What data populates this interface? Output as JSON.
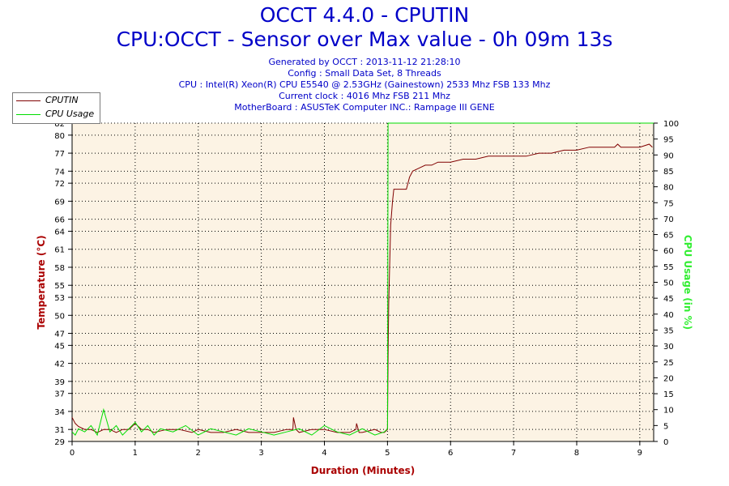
{
  "titles": {
    "main": "OCCT 4.4.0 - CPUTIN",
    "sub": "CPU:OCCT - Sensor over Max value - 0h 09m 13s"
  },
  "info_lines": [
    "Generated by OCCT : 2013-11-12 21:28:10",
    "Config : Small Data Set, 8 Threads",
    "CPU : Intel(R) Xeon(R) CPU E5540 @ 2.53GHz (Gainestown) 2533 Mhz FSB 133 Mhz",
    "Current clock : 4016 Mhz FSB 211 Mhz",
    "MotherBoard : ASUSTeK Computer INC.: Rampage III GENE"
  ],
  "colors": {
    "temperature": "#800000",
    "cpu_usage": "#00dd00",
    "plot_bg": "#fcf3e4",
    "grid": "#000000",
    "axis_label_left": "#aa0000",
    "axis_label_right": "#33ee33",
    "axis_label_x": "#aa0000",
    "text_blue": "#0000c8"
  },
  "chart_data": {
    "type": "line",
    "xlabel": "Duration (Minutes)",
    "ylabel_left": "Temperature (°C)",
    "ylabel_right": "CPU Usage (in %)",
    "xlim": [
      0,
      9.22
    ],
    "ylim_left": [
      29,
      82
    ],
    "ylim_right": [
      0,
      100
    ],
    "x_ticks": [
      0,
      1,
      2,
      3,
      4,
      5,
      6,
      7,
      8,
      9
    ],
    "y_left_ticks": [
      29,
      31,
      34,
      37,
      39,
      42,
      45,
      47,
      50,
      53,
      55,
      58,
      61,
      64,
      66,
      69,
      72,
      74,
      77,
      80,
      82
    ],
    "y_right_ticks": [
      0,
      5,
      10,
      15,
      20,
      25,
      30,
      35,
      40,
      45,
      50,
      55,
      60,
      65,
      70,
      75,
      80,
      85,
      90,
      95,
      100
    ],
    "grid": true,
    "legend_position": "top-left",
    "series": [
      {
        "name": "CPUTIN",
        "axis": "left",
        "x": [
          0,
          0.05,
          0.1,
          0.2,
          0.3,
          0.4,
          0.5,
          0.6,
          0.7,
          0.8,
          0.9,
          1.0,
          1.1,
          1.2,
          1.3,
          1.5,
          1.7,
          1.9,
          2.0,
          2.2,
          2.4,
          2.6,
          2.8,
          3.0,
          3.2,
          3.4,
          3.5,
          3.51,
          3.55,
          3.6,
          3.8,
          4.0,
          4.2,
          4.4,
          4.5,
          4.51,
          4.55,
          4.6,
          4.8,
          4.9,
          4.95,
          5.0,
          5.01,
          5.02,
          5.05,
          5.08,
          5.1,
          5.3,
          5.35,
          5.4,
          5.5,
          5.6,
          5.7,
          5.8,
          5.9,
          6.0,
          6.2,
          6.4,
          6.6,
          6.8,
          7.0,
          7.2,
          7.4,
          7.6,
          7.8,
          8.0,
          8.2,
          8.4,
          8.6,
          8.65,
          8.7,
          8.8,
          9.0,
          9.15,
          9.2
        ],
        "y": [
          33,
          32,
          31.5,
          31,
          31,
          30.5,
          31,
          31,
          30.5,
          31,
          31,
          32,
          31,
          31,
          30.5,
          31,
          31,
          30.5,
          31,
          30.5,
          30.5,
          31,
          30.5,
          30.5,
          30.5,
          31,
          31,
          33,
          31,
          30.5,
          31,
          31,
          30.5,
          30.5,
          31,
          32,
          30.5,
          30.5,
          31,
          30.5,
          30.5,
          31,
          43,
          52,
          65,
          69,
          71,
          71,
          73,
          74,
          74.5,
          75,
          75,
          75.5,
          75.5,
          75.5,
          76,
          76,
          76.5,
          76.5,
          76.5,
          76.5,
          77,
          77,
          77.5,
          77.5,
          78,
          78,
          78,
          78.5,
          78,
          78,
          78,
          78.5,
          78
        ]
      },
      {
        "name": "CPU Usage",
        "axis": "right",
        "x": [
          0,
          0.05,
          0.1,
          0.2,
          0.3,
          0.4,
          0.5,
          0.6,
          0.7,
          0.8,
          0.9,
          1.0,
          1.1,
          1.2,
          1.3,
          1.4,
          1.6,
          1.8,
          2.0,
          2.2,
          2.4,
          2.6,
          2.8,
          3.0,
          3.2,
          3.4,
          3.6,
          3.8,
          4.0,
          4.2,
          4.4,
          4.6,
          4.8,
          4.95,
          5.0,
          5.01,
          5.02,
          9.22
        ],
        "y": [
          3,
          2,
          4,
          3,
          5,
          2,
          10,
          3,
          5,
          2,
          4,
          6,
          3,
          5,
          2,
          4,
          3,
          5,
          2,
          4,
          3,
          2,
          4,
          3,
          2,
          3,
          4,
          2,
          5,
          3,
          2,
          4,
          2,
          3,
          4,
          100,
          100,
          100
        ]
      }
    ]
  },
  "legend": {
    "entries": [
      "CPUTIN",
      "CPU Usage"
    ]
  }
}
